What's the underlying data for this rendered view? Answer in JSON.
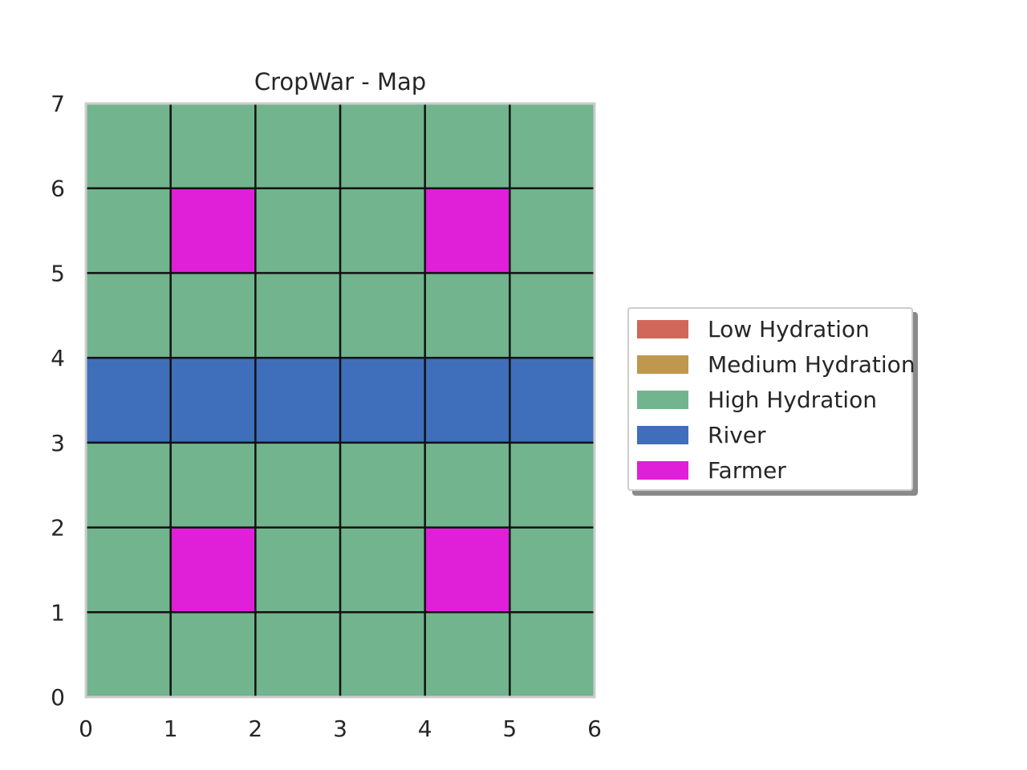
{
  "chart_data": {
    "type": "heatmap",
    "title": "CropWar - Map",
    "xlabel": "",
    "ylabel": "",
    "xlim": [
      0,
      6
    ],
    "ylim": [
      0,
      7
    ],
    "xticks": [
      "0",
      "1",
      "2",
      "3",
      "4",
      "5",
      "6"
    ],
    "yticks": [
      "0",
      "1",
      "2",
      "3",
      "4",
      "5",
      "6",
      "7"
    ],
    "grid": true,
    "legend_position": "right",
    "categories": {
      "low": {
        "label": "Low Hydration",
        "color": "#d1675a"
      },
      "medium": {
        "label": "Medium Hydration",
        "color": "#c0974e"
      },
      "high": {
        "label": "High Hydration",
        "color": "#72b48d"
      },
      "river": {
        "label": "River",
        "color": "#3f6fba"
      },
      "farmer": {
        "label": "Farmer",
        "color": "#e01fd9"
      }
    },
    "legend_order": [
      "low",
      "medium",
      "high",
      "river",
      "farmer"
    ],
    "cells_top_to_bottom": [
      [
        "high",
        "high",
        "high",
        "high",
        "high",
        "high"
      ],
      [
        "high",
        "farmer",
        "high",
        "high",
        "farmer",
        "high"
      ],
      [
        "high",
        "high",
        "high",
        "high",
        "high",
        "high"
      ],
      [
        "river",
        "river",
        "river",
        "river",
        "river",
        "river"
      ],
      [
        "high",
        "high",
        "high",
        "high",
        "high",
        "high"
      ],
      [
        "high",
        "farmer",
        "high",
        "high",
        "farmer",
        "high"
      ],
      [
        "high",
        "high",
        "high",
        "high",
        "high",
        "high"
      ]
    ]
  },
  "legend": {
    "items": [
      {
        "label": "Low Hydration",
        "color": "#d1675a"
      },
      {
        "label": "Medium Hydration",
        "color": "#c0974e"
      },
      {
        "label": "High Hydration",
        "color": "#72b48d"
      },
      {
        "label": "River",
        "color": "#3f6fba"
      },
      {
        "label": "Farmer",
        "color": "#e01fd9"
      }
    ]
  }
}
